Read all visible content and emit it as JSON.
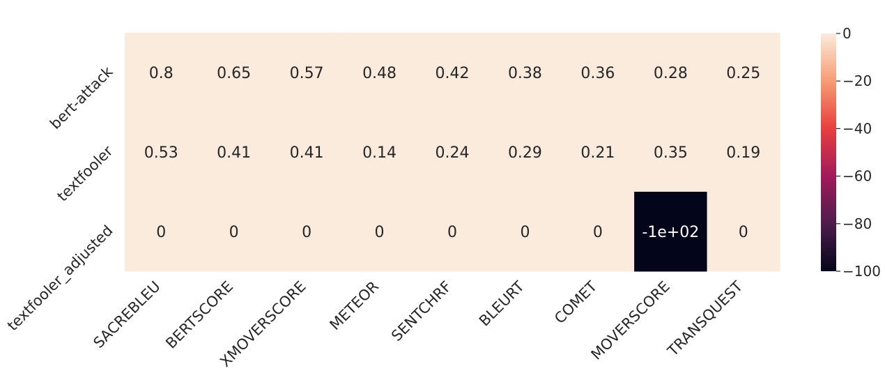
{
  "chart_data": {
    "type": "heatmap",
    "title": "",
    "xlabel": "",
    "ylabel": "",
    "x_categories": [
      "SACREBLEU",
      "BERTSCORE",
      "XMOVERSCORE",
      "METEOR",
      "SENTCHRF",
      "BLEURT",
      "COMET",
      "MOVERSCORE",
      "TRANSQUEST"
    ],
    "y_categories": [
      "bert-attack",
      "textfooler",
      "textfooler_adjusted"
    ],
    "values": [
      [
        0.8,
        0.65,
        0.57,
        0.48,
        0.42,
        0.38,
        0.36,
        0.28,
        0.25
      ],
      [
        0.53,
        0.41,
        0.41,
        0.14,
        0.24,
        0.29,
        0.21,
        0.35,
        0.19
      ],
      [
        0,
        0,
        0,
        0,
        0,
        0,
        0,
        -100,
        0
      ]
    ],
    "cell_labels": [
      [
        "0.8",
        "0.65",
        "0.57",
        "0.48",
        "0.42",
        "0.38",
        "0.36",
        "0.28",
        "0.25"
      ],
      [
        "0.53",
        "0.41",
        "0.41",
        "0.14",
        "0.24",
        "0.29",
        "0.21",
        "0.35",
        "0.19"
      ],
      [
        "0",
        "0",
        "0",
        "0",
        "0",
        "0",
        "0",
        "-1e+02",
        "0"
      ]
    ],
    "colorbar": {
      "range": [
        -100,
        0
      ],
      "ticks": [
        0,
        -20,
        -40,
        -60,
        -80,
        -100
      ],
      "tick_labels": [
        "0",
        "−20",
        "−40",
        "−60",
        "−80",
        "−100"
      ],
      "colormap": "rocket",
      "colormap_stops": [
        "#03051a",
        "#4c1d4b",
        "#a11a5b",
        "#e83f3f",
        "#f69c73",
        "#faebdd"
      ]
    },
    "grid": false,
    "legend": "colorbar-right"
  }
}
